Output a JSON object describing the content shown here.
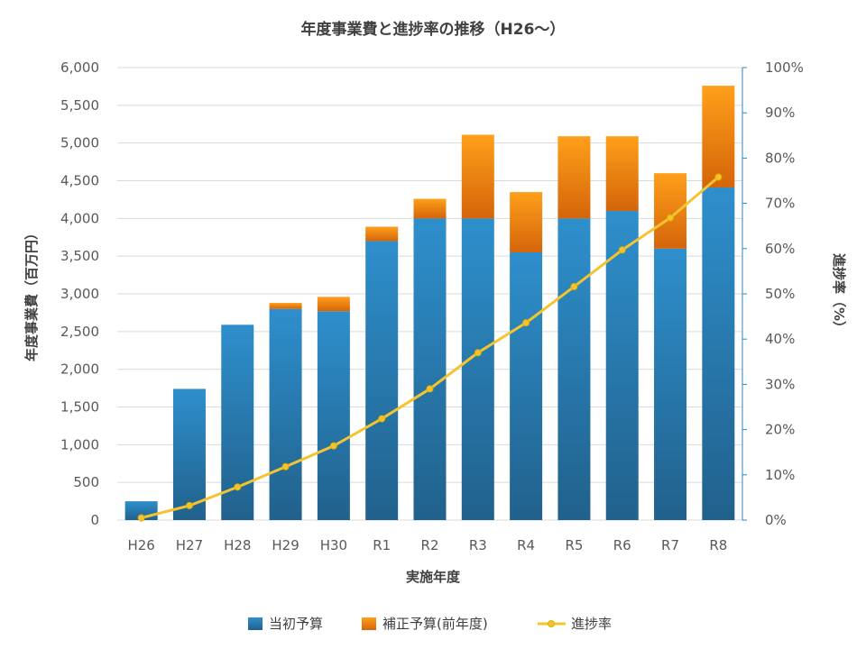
{
  "chart_data": {
    "type": "bar",
    "title": "年度事業費と進捗率の推移（H26～）",
    "xlabel": "実施年度",
    "ylabel": "年度事業費（百万円）",
    "y2label": "進捗率（%）",
    "categories": [
      "H26",
      "H27",
      "H28",
      "H29",
      "H30",
      "R1",
      "R2",
      "R3",
      "R4",
      "R5",
      "R6",
      "R7",
      "R8"
    ],
    "ylim": [
      0,
      6000
    ],
    "y2lim": [
      0,
      100
    ],
    "y_ticks": [
      "0",
      "500",
      "1,000",
      "1,500",
      "2,000",
      "2,500",
      "3,000",
      "3,500",
      "4,000",
      "4,500",
      "5,000",
      "5,500",
      "6,000"
    ],
    "y2_ticks": [
      "0%",
      "10%",
      "20%",
      "30%",
      "40%",
      "50%",
      "60%",
      "70%",
      "80%",
      "90%",
      "100%"
    ],
    "grid": true,
    "legend_position": "bottom",
    "series": [
      {
        "name": "当初予算",
        "type": "stacked-bar",
        "color": "#2E86C1",
        "values": [
          250,
          1740,
          2590,
          2800,
          2770,
          3700,
          4000,
          4000,
          3550,
          4000,
          4100,
          3600,
          4410
        ]
      },
      {
        "name": "補正予算(前年度)",
        "type": "stacked-bar",
        "color": "#F39C12",
        "values": [
          0,
          0,
          0,
          80,
          190,
          190,
          260,
          1110,
          800,
          1090,
          990,
          1000,
          1350
        ]
      },
      {
        "name": "進捗率",
        "type": "line",
        "axis": "right",
        "color": "#F4C430",
        "values": [
          0.5,
          3.2,
          7.3,
          11.8,
          16.4,
          22.4,
          29.0,
          37.0,
          43.6,
          51.6,
          59.7,
          66.8,
          75.8
        ]
      }
    ]
  }
}
